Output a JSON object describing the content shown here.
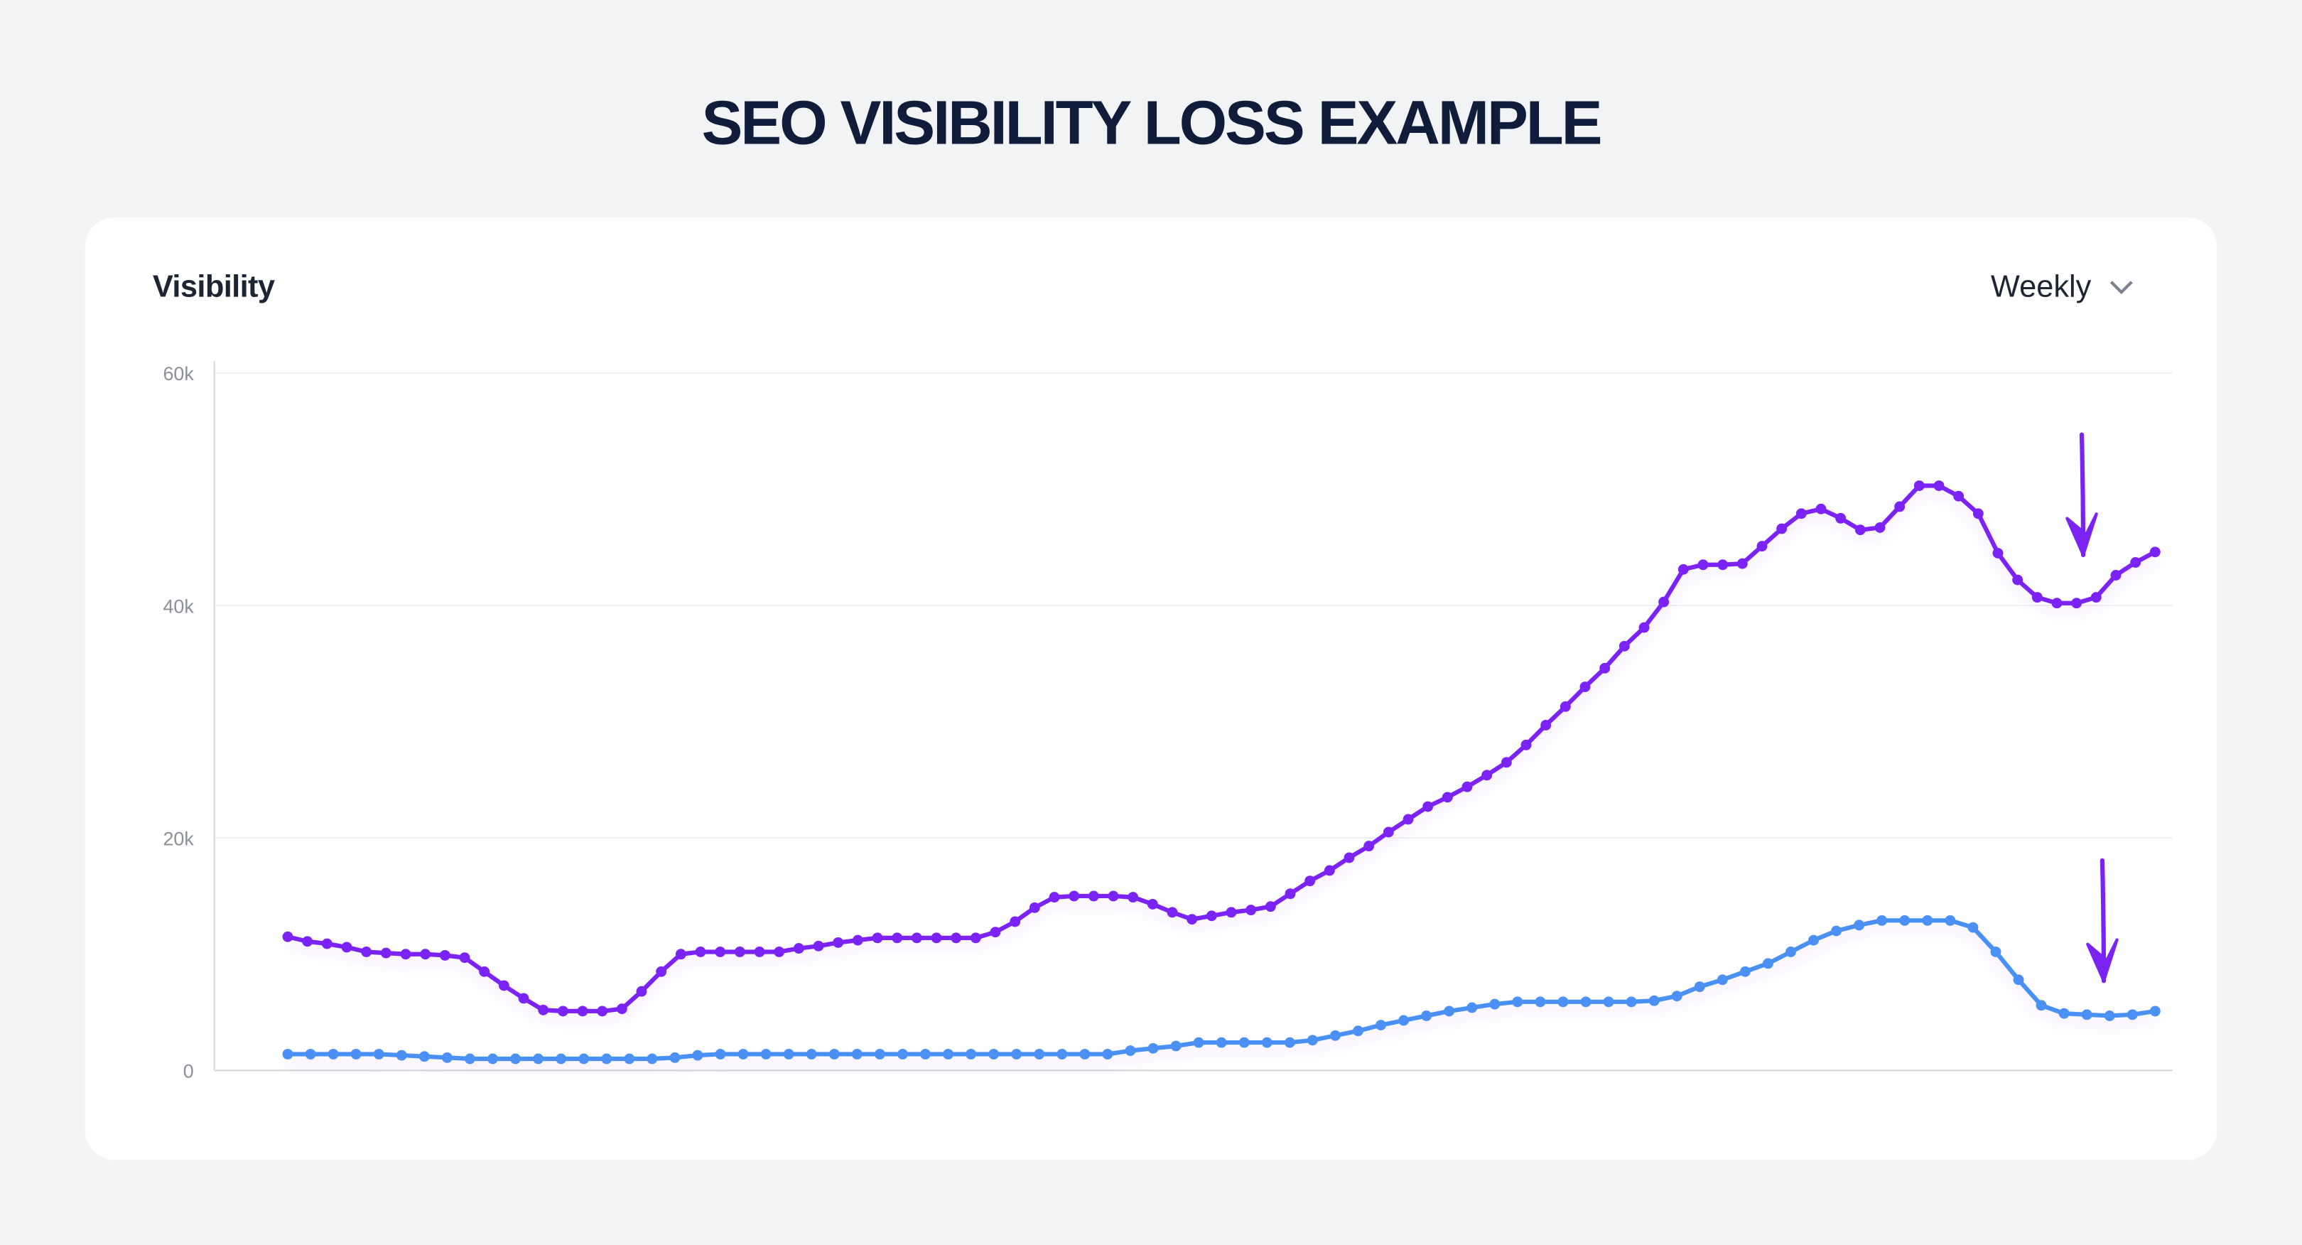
{
  "page": {
    "title": "SEO VISIBILITY LOSS EXAMPLE"
  },
  "card": {
    "title": "Visibility",
    "period_select": {
      "selected": "Weekly",
      "icon": "chevron-down-icon"
    }
  },
  "colors": {
    "series1": "#7b22f5",
    "series2": "#4a90f5",
    "arrow": "#7b22f5",
    "grid": "#f0f1f3",
    "axis": "#d9dbe0"
  },
  "chart_data": {
    "type": "line",
    "title": "Visibility",
    "xlabel": "",
    "ylabel": "",
    "ylim": [
      0,
      60000
    ],
    "yticks": [
      {
        "value": 0,
        "label": "0"
      },
      {
        "value": 20000,
        "label": "20k"
      },
      {
        "value": 40000,
        "label": "40k"
      },
      {
        "value": 60000,
        "label": "60k"
      }
    ],
    "grid": true,
    "legend": "none",
    "series": [
      {
        "name": "series-1",
        "color": "#7b22f5",
        "values": [
          11500,
          11100,
          10900,
          10600,
          10200,
          10100,
          10000,
          10000,
          9900,
          9700,
          8500,
          7300,
          6200,
          5200,
          5100,
          5100,
          5100,
          5300,
          6800,
          8500,
          10000,
          10200,
          10200,
          10200,
          10200,
          10200,
          10500,
          10700,
          11000,
          11200,
          11400,
          11400,
          11400,
          11400,
          11400,
          11400,
          11900,
          12800,
          14000,
          14900,
          15000,
          15000,
          15000,
          14900,
          14300,
          13600,
          13000,
          13300,
          13600,
          13800,
          14100,
          15200,
          16300,
          17200,
          18300,
          19300,
          20500,
          21600,
          22700,
          23500,
          24400,
          25400,
          26500,
          28000,
          29700,
          31300,
          33000,
          34600,
          36500,
          38100,
          40300,
          43100,
          43500,
          43500,
          43600,
          45100,
          46600,
          47900,
          48300,
          47500,
          46500,
          46700,
          48500,
          50300,
          50300,
          49400,
          47900,
          44500,
          42200,
          40700,
          40200,
          40200,
          40700,
          42600,
          43700,
          44600
        ]
      },
      {
        "name": "series-2",
        "color": "#4a90f5",
        "values": [
          1400,
          1400,
          1400,
          1400,
          1400,
          1300,
          1200,
          1100,
          1000,
          1000,
          1000,
          1000,
          1000,
          1000,
          1000,
          1000,
          1000,
          1100,
          1300,
          1400,
          1400,
          1400,
          1400,
          1400,
          1400,
          1400,
          1400,
          1400,
          1400,
          1400,
          1400,
          1400,
          1400,
          1400,
          1400,
          1400,
          1400,
          1700,
          1900,
          2100,
          2400,
          2400,
          2400,
          2400,
          2400,
          2600,
          3000,
          3400,
          3900,
          4300,
          4700,
          5100,
          5400,
          5700,
          5900,
          5900,
          5900,
          5900,
          5900,
          5900,
          6000,
          6400,
          7200,
          7800,
          8500,
          9200,
          10200,
          11200,
          12000,
          12500,
          12900,
          12900,
          12900,
          12900,
          12300,
          10200,
          7800,
          5600,
          4900,
          4800,
          4700,
          4800,
          5100
        ]
      }
    ],
    "annotations": [
      {
        "type": "arrow-down",
        "series": "series-1"
      },
      {
        "type": "arrow-down",
        "series": "series-2"
      }
    ]
  }
}
